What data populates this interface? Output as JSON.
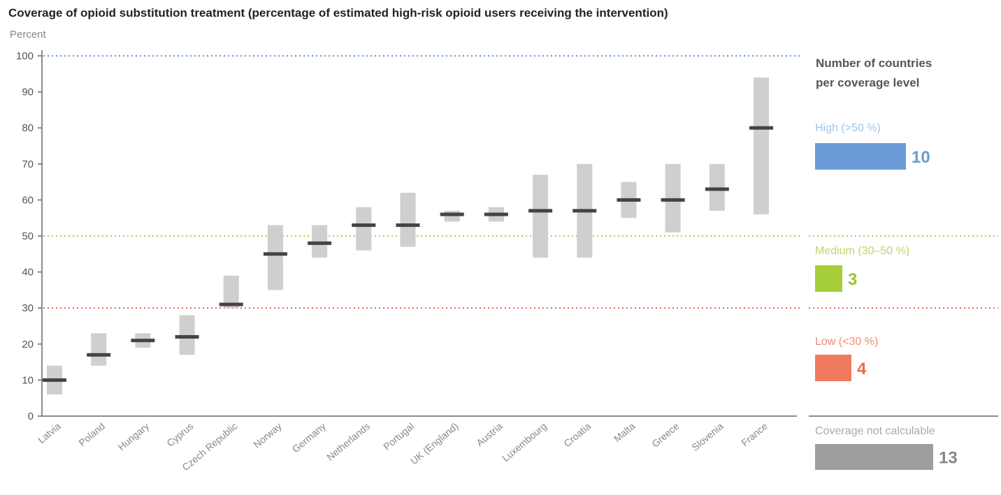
{
  "chart_data": {
    "type": "range-bar",
    "title": "Coverage of opioid substitution treatment (percentage of estimated high-risk opioid users receiving the intervention)",
    "ylabel": "Percent",
    "ylim": [
      0,
      100
    ],
    "yticks": [
      0,
      10,
      20,
      30,
      40,
      50,
      60,
      70,
      80,
      90,
      100
    ],
    "categories": [
      "Latvia",
      "Poland",
      "Hungary",
      "Cyprus",
      "Czech Republic",
      "Norway",
      "Germany",
      "Netherlands",
      "Portugal",
      "UK (England)",
      "Austria",
      "Luxembourg",
      "Croatia",
      "Malta",
      "Greece",
      "Slovenia",
      "France"
    ],
    "low": [
      6,
      14,
      19,
      17,
      30,
      35,
      44,
      46,
      47,
      54,
      54,
      44,
      44,
      55,
      51,
      57,
      56
    ],
    "high": [
      14,
      23,
      23,
      28,
      39,
      53,
      53,
      58,
      62,
      57,
      58,
      67,
      70,
      65,
      70,
      70,
      94
    ],
    "point": [
      10,
      17,
      21,
      22,
      31,
      45,
      48,
      53,
      53,
      56,
      56,
      57,
      57,
      60,
      60,
      63,
      80
    ],
    "reference_lines": [
      {
        "value": 100,
        "color": "#6c9bd8"
      },
      {
        "value": 50,
        "color": "#b5cf4a"
      },
      {
        "value": 30,
        "color": "#ea6a5a"
      }
    ],
    "colors": {
      "range": "#cfcfcf",
      "point": "#444444",
      "axis": "#666666"
    }
  },
  "summary": {
    "title_line1": "Number of countries",
    "title_line2": "per coverage level",
    "levels": [
      {
        "label": "High (>50 %)",
        "count": "10",
        "value": 10,
        "color": "#6a9bd8",
        "text_color": "#6a9bd8",
        "label_color": "#a7c4ea"
      },
      {
        "label": "Medium (30–50 %)",
        "count": "3",
        "value": 3,
        "color": "#a6ce39",
        "text_color": "#9cc32e",
        "label_color": "#bdd66a"
      },
      {
        "label": "Low (<30 %)",
        "count": "4",
        "value": 4,
        "color": "#f07a5e",
        "text_color": "#ec6a4c",
        "label_color": "#f08a72"
      },
      {
        "label": "Coverage not calculable",
        "count": "13",
        "value": 13,
        "color": "#9e9e9e",
        "text_color": "#888888",
        "label_color": "#aaaaaa"
      }
    ]
  }
}
